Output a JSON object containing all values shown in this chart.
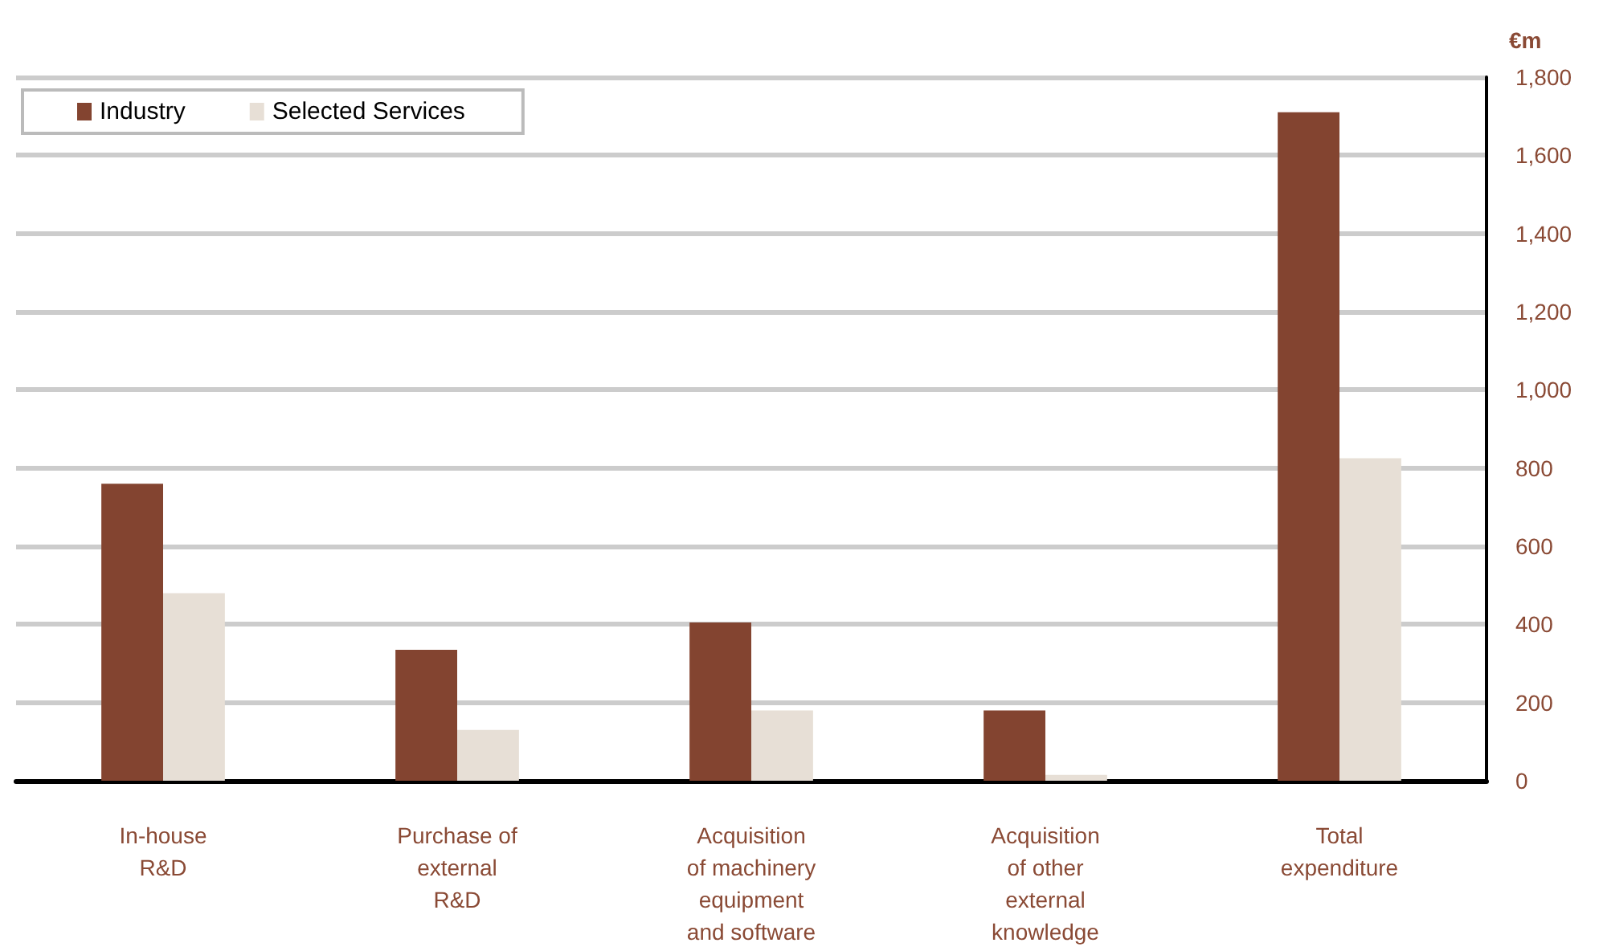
{
  "chart_data": {
    "type": "bar",
    "ylabel": "€m",
    "categories": [
      "In-house\nR&D",
      "Purchase of\nexternal\nR&D",
      "Acquisition\nof machinery\nequipment\nand software",
      "Acquisition\nof other\nexternal\nknowledge",
      "Total\nexpenditure"
    ],
    "series": [
      {
        "name": "Industry",
        "color": "#834430",
        "values": [
          760,
          335,
          405,
          180,
          1710
        ]
      },
      {
        "name": "Selected Services",
        "color": "#e7dfd6",
        "values": [
          480,
          130,
          180,
          15,
          825
        ]
      }
    ],
    "ylim": [
      0,
      1800
    ],
    "yticks": [
      0,
      200,
      400,
      600,
      800,
      {
        "value": 1000,
        "label": "1,000"
      },
      {
        "value": 1200,
        "label": "1,200"
      },
      {
        "value": 1400,
        "label": "1,400"
      },
      {
        "value": 1600,
        "label": "1,600"
      },
      {
        "value": 1800,
        "label": "1,800"
      }
    ],
    "grid": "y",
    "legend": "top left"
  }
}
